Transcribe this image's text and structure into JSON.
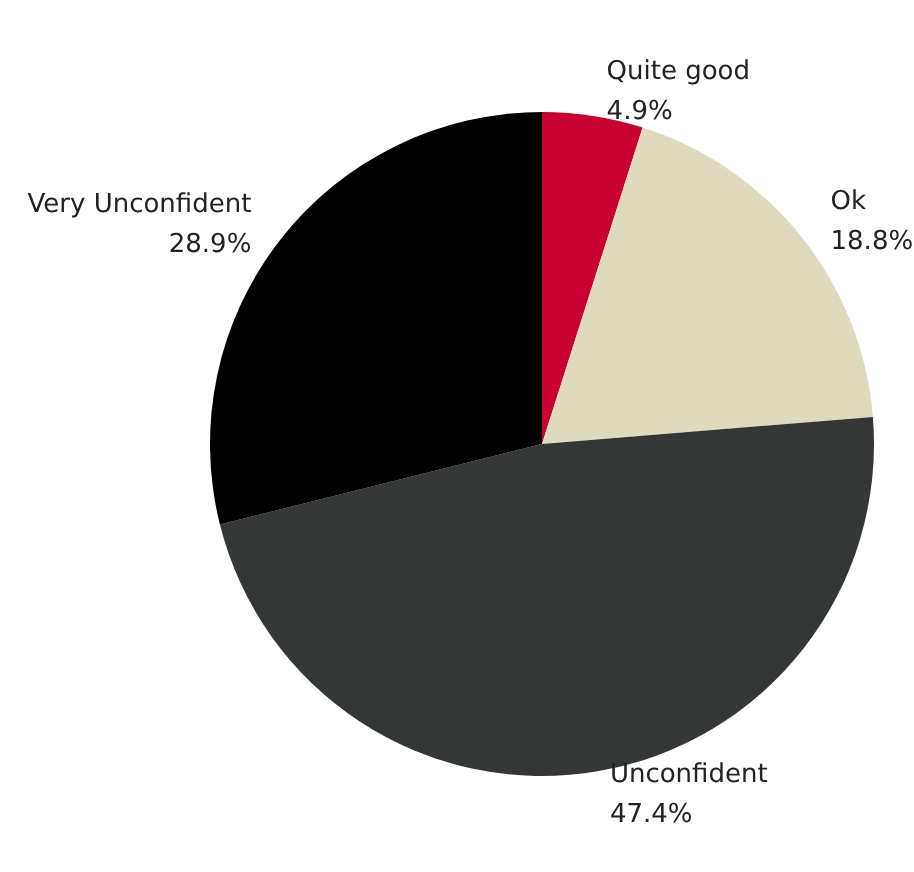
{
  "chart_data": {
    "type": "pie",
    "categories": [
      "Quite good",
      "Ok",
      "Unconfident",
      "Very Unconfident"
    ],
    "values": [
      4.9,
      18.8,
      47.4,
      28.9
    ],
    "colors": [
      "#c90032",
      "#dfd9bd",
      "#333735",
      "#000000"
    ],
    "legend": false,
    "value_labels": [
      "4.9%",
      "18.8%",
      "47.4%",
      "28.9%"
    ]
  }
}
